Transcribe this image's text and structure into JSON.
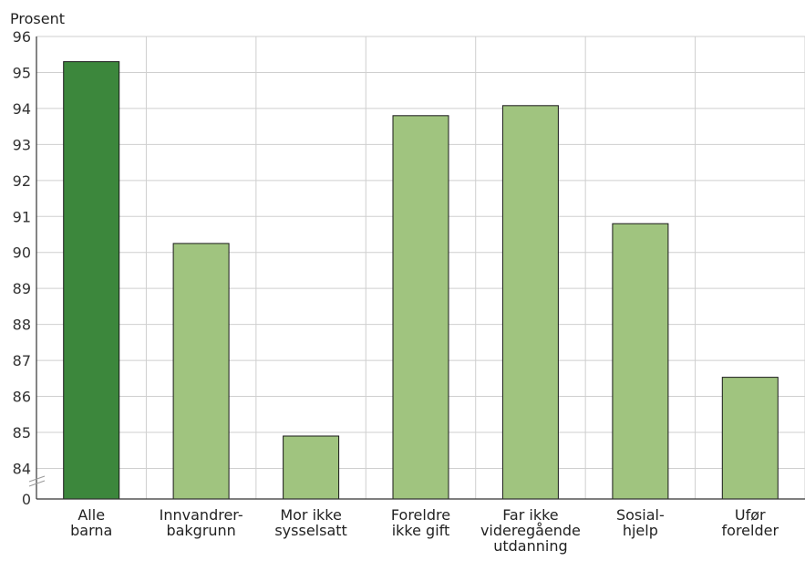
{
  "chart_data": {
    "type": "bar",
    "ylabel": "Prosent",
    "categories": [
      [
        "Alle",
        "barna"
      ],
      [
        "Innvandrer-",
        "bakgrunn"
      ],
      [
        "Mor ikke",
        "sysselsatt"
      ],
      [
        "Foreldre",
        "ikke gift"
      ],
      [
        "Far ikke",
        "videregående",
        "utdanning"
      ],
      [
        "Sosial-",
        "hjelp"
      ],
      [
        "Ufør",
        "forelder"
      ]
    ],
    "values": [
      95.3,
      90.25,
      84.9,
      93.8,
      94.08,
      90.8,
      86.53
    ],
    "ylim": [
      83.15,
      96
    ],
    "axis_break": true,
    "yticks": [
      84,
      85,
      86,
      87,
      88,
      89,
      90,
      91,
      92,
      93,
      94,
      95,
      96
    ],
    "ytick_labels": [
      "84",
      "85",
      "86",
      "87",
      "88",
      "89",
      "90",
      "91",
      "92",
      "93",
      "94",
      "95",
      "96"
    ],
    "baseline_label": "0",
    "grid": true,
    "colors": {
      "highlight": "#3c873c",
      "default": "#a0c47f",
      "grid": "#cfcfcf",
      "axis": "#333333"
    }
  }
}
